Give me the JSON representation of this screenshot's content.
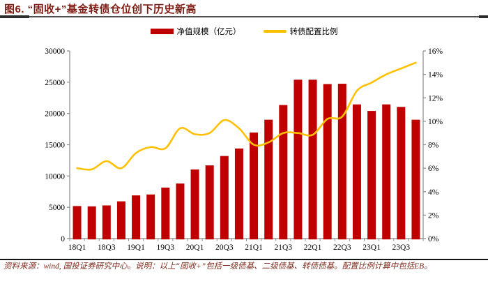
{
  "figure": {
    "title": "图6. “固收+”基金转债仓位创下历史新高",
    "source_note": "资料来源：wind, 国投证券研究中心。说明：以上“固收+”包括一级债基、二级债基、转债债基。配置比例计算中包括EB。"
  },
  "chart_data": {
    "type": "bar+line",
    "categories": [
      "18Q1",
      "18Q2",
      "18Q3",
      "18Q4",
      "19Q1",
      "19Q2",
      "19Q3",
      "19Q4",
      "20Q1",
      "20Q2",
      "20Q3",
      "20Q4",
      "21Q1",
      "21Q2",
      "21Q3",
      "21Q4",
      "22Q1",
      "22Q2",
      "22Q3",
      "22Q4",
      "23Q1",
      "23Q2",
      "23Q3",
      "23Q4"
    ],
    "x_tick_labels": [
      "18Q1",
      "18Q3",
      "19Q1",
      "19Q3",
      "20Q1",
      "20Q3",
      "21Q1",
      "21Q3",
      "22Q1",
      "22Q3",
      "23Q1",
      "23Q3"
    ],
    "series": [
      {
        "name": "净值规模（亿元）",
        "type": "bar",
        "axis": "left",
        "color": "#C00000",
        "values": [
          5200,
          5150,
          5300,
          5950,
          6900,
          7050,
          8150,
          8800,
          11050,
          11700,
          13200,
          14400,
          16950,
          19000,
          21350,
          25400,
          25400,
          24700,
          24750,
          21450,
          20400,
          21450,
          21050,
          19000
        ]
      },
      {
        "name": "转债配置比例",
        "type": "line",
        "axis": "right",
        "color": "#FFC000",
        "values": [
          6.0,
          5.9,
          6.6,
          6.0,
          7.3,
          7.8,
          7.7,
          9.4,
          8.9,
          9.0,
          10.1,
          9.4,
          8.0,
          8.2,
          9.0,
          9.0,
          8.85,
          10.2,
          10.4,
          12.6,
          13.3,
          14.0,
          14.5,
          15.0
        ]
      }
    ],
    "left_axis": {
      "min": 0,
      "max": 30000,
      "step": 5000,
      "tick_labels": [
        "0",
        "5000",
        "10000",
        "15000",
        "20000",
        "25000",
        "30000"
      ]
    },
    "right_axis": {
      "min": 0,
      "max": 16,
      "step": 2,
      "tick_labels": [
        "0%",
        "2%",
        "4%",
        "6%",
        "8%",
        "10%",
        "12%",
        "14%",
        "16%"
      ]
    },
    "grid": false,
    "legend_position": "top-center"
  }
}
